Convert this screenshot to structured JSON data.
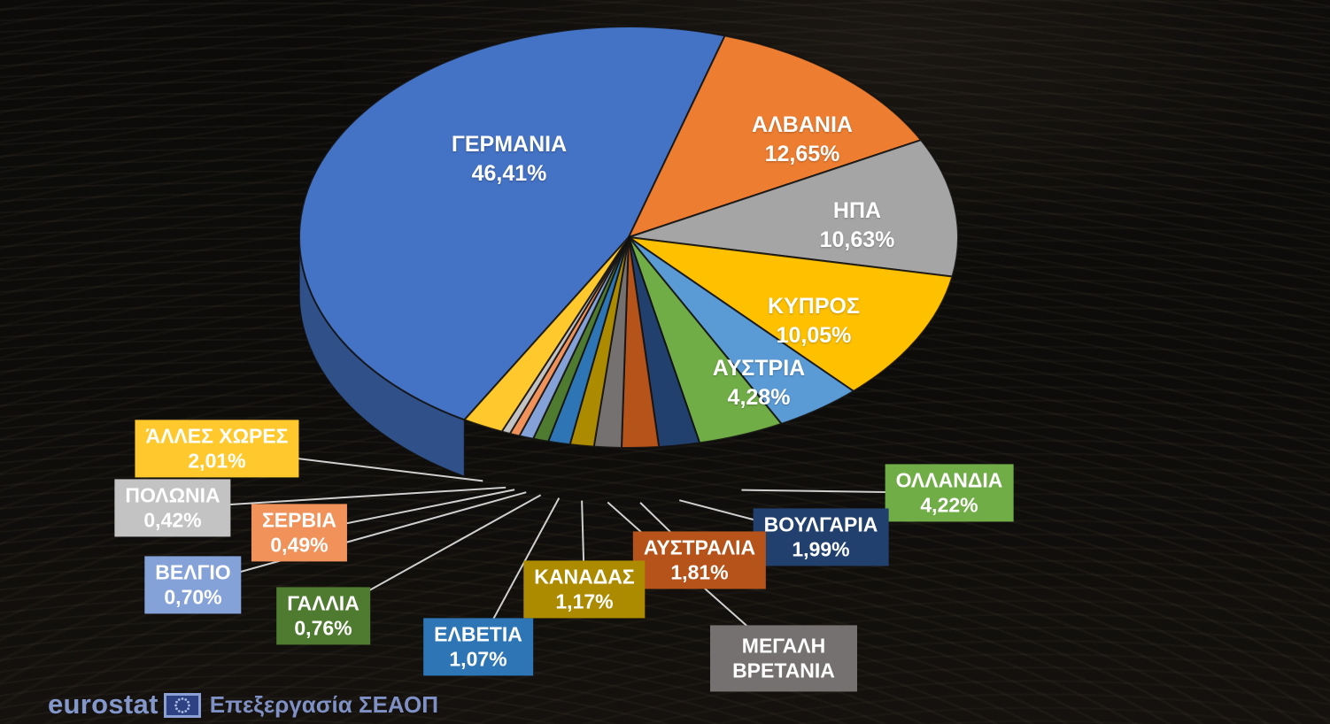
{
  "chart_data": {
    "type": "pie",
    "style": "3d-pie",
    "unit": "%",
    "decimal_separator": ",",
    "legend": "none",
    "leader_line_color": "#CFCFCF",
    "slices": [
      {
        "name": "ΓΕΡΜΑΝΙΑ",
        "value": 46.41,
        "value_label": "46,41%",
        "color": "#4472C4",
        "label_style": "inside"
      },
      {
        "name": "ΑΛΒΑΝΙΑ",
        "value": 12.65,
        "value_label": "12,65%",
        "color": "#ED7D31",
        "label_style": "inside"
      },
      {
        "name": "ΗΠΑ",
        "value": 10.63,
        "value_label": "10,63%",
        "color": "#A5A5A5",
        "label_style": "inside"
      },
      {
        "name": "ΚΥΠΡΟΣ",
        "value": 10.05,
        "value_label": "10,05%",
        "color": "#FFC000",
        "label_style": "inside"
      },
      {
        "name": "ΑΥΣΤΡΙΑ",
        "value": 4.28,
        "value_label": "4,28%",
        "color": "#5B9BD5",
        "label_style": "inside"
      },
      {
        "name": "ΟΛΛΑΝΔΙΑ",
        "value": 4.22,
        "value_label": "4,22%",
        "color": "#70AD47",
        "label_style": "box"
      },
      {
        "name": "ΒΟΥΛΓΑΡΙΑ",
        "value": 1.99,
        "value_label": "1,99%",
        "color": "#22406E",
        "label_style": "box"
      },
      {
        "name": "ΑΥΣΤΡΑΛΙΑ",
        "value": 1.81,
        "value_label": "1,81%",
        "color": "#B5531A",
        "label_style": "box"
      },
      {
        "name": "ΜΕΓΑΛΗ ΒΡΕΤΑΝΙΑ",
        "value": 1.34,
        "value_label": "",
        "color": "#767171",
        "label_style": "box"
      },
      {
        "name": "ΚΑΝΑΔΑΣ",
        "value": 1.17,
        "value_label": "1,17%",
        "color": "#AD8B00",
        "label_style": "box"
      },
      {
        "name": "ΕΛΒΕΤΙΑ",
        "value": 1.07,
        "value_label": "1,07%",
        "color": "#2E75B6",
        "label_style": "box"
      },
      {
        "name": "ΓΑΛΛΙΑ",
        "value": 0.76,
        "value_label": "0,76%",
        "color": "#4F7B31",
        "label_style": "box"
      },
      {
        "name": "ΒΕΛΓΙΟ",
        "value": 0.7,
        "value_label": "0,70%",
        "color": "#84A1D8",
        "label_style": "box"
      },
      {
        "name": "ΣΕΡΒΙΑ",
        "value": 0.49,
        "value_label": "0,49%",
        "color": "#F0925A",
        "label_style": "box"
      },
      {
        "name": "ΠΟΛΩΝΙΑ",
        "value": 0.42,
        "value_label": "0,42%",
        "color": "#C3C3C3",
        "label_style": "box"
      },
      {
        "name": "ΆΛΛΕΣ ΧΩΡΕΣ",
        "value": 2.01,
        "value_label": "2,01%",
        "color": "#FFC92E",
        "label_style": "box"
      }
    ]
  },
  "footer": {
    "brand": "eurostat",
    "brand_color": "#8497CB",
    "caption": "Επεξεργασία ΣΕΑΟΠ"
  }
}
